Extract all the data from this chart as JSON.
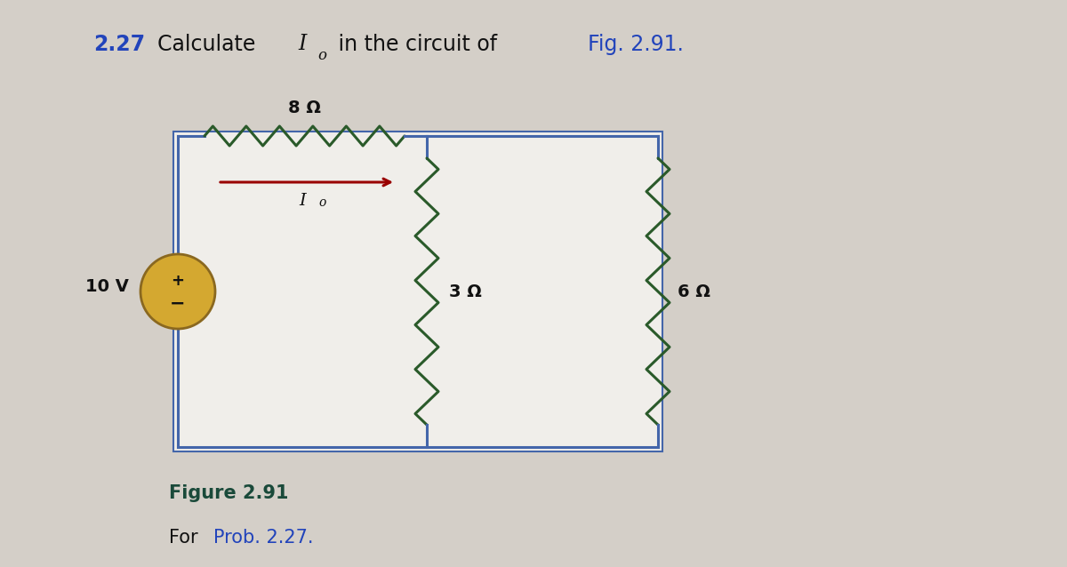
{
  "title_number": "2.27",
  "title_text_1": "Calculate ",
  "title_var": "I",
  "title_sub": "o",
  "title_text_2": " in the circuit of ",
  "title_fig": "Fig. 2.91.",
  "fig_label": "Figure 2.91",
  "fig_prob_black": "For ",
  "fig_prob_blue": "Prob. 2.27.",
  "bg_color": "#d4cfc8",
  "circuit_bg": "#f0eeea",
  "text_color_black": "#111111",
  "text_color_blue": "#2244bb",
  "text_color_number_blue": "#2244bb",
  "text_color_fig_label": "#1a4a3a",
  "wire_color": "#4466aa",
  "resistor_color": "#2a5a2a",
  "source_fill": "#d4a830",
  "source_edge": "#8a6820",
  "arrow_color": "#990000",
  "voltage_label": "10 V",
  "r1_label": "8 Ω",
  "r2_label": "3 Ω",
  "r3_label": "6 Ω",
  "io_label": "I",
  "io_sub": "o"
}
